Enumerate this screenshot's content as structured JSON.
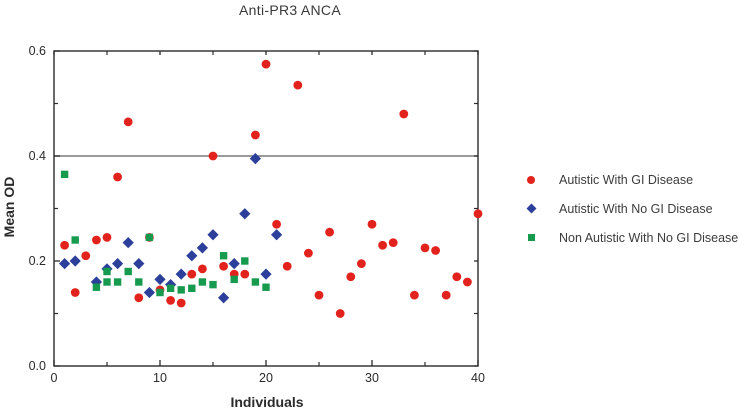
{
  "title": "Anti-PR3 ANCA",
  "chart_data": {
    "type": "scatter",
    "title": "Anti-PR3 ANCA",
    "xlabel": "Individuals",
    "ylabel": "Mean OD",
    "xlim": [
      0,
      40
    ],
    "ylim": [
      0,
      0.6
    ],
    "grid": false,
    "legend_position": "right-outside",
    "frame": "box-with-inward-ticks",
    "reference_line_y": 0.4,
    "reference_line_color": "#77787b",
    "frame_color": "#2b2b2b",
    "x_ticks": {
      "major": [
        0,
        10,
        20,
        30,
        40
      ],
      "minor": [
        5,
        15,
        25,
        35
      ],
      "labels": [
        "0",
        "10",
        "20",
        "30",
        "40"
      ]
    },
    "y_ticks": {
      "major": [
        0,
        0.2,
        0.4,
        0.6
      ],
      "minor": [
        0.1,
        0.3,
        0.5
      ],
      "labels": [
        "0.0",
        "0.2",
        "0.4",
        "0.6"
      ]
    },
    "series": [
      {
        "name": "Autistic With GI Disease",
        "marker": "circle",
        "color": "#e2231d",
        "points": [
          [
            1,
            0.23
          ],
          [
            2,
            0.14
          ],
          [
            3,
            0.21
          ],
          [
            4,
            0.24
          ],
          [
            5,
            0.245
          ],
          [
            6,
            0.36
          ],
          [
            7,
            0.465
          ],
          [
            8,
            0.13
          ],
          [
            9,
            0.245
          ],
          [
            10,
            0.145
          ],
          [
            11,
            0.125
          ],
          [
            12,
            0.12
          ],
          [
            13,
            0.175
          ],
          [
            14,
            0.185
          ],
          [
            15,
            0.4
          ],
          [
            16,
            0.19
          ],
          [
            17,
            0.175
          ],
          [
            18,
            0.175
          ],
          [
            19,
            0.44
          ],
          [
            20,
            0.575
          ],
          [
            21,
            0.27
          ],
          [
            22,
            0.19
          ],
          [
            23,
            0.535
          ],
          [
            24,
            0.215
          ],
          [
            25,
            0.135
          ],
          [
            26,
            0.255
          ],
          [
            27,
            0.1
          ],
          [
            28,
            0.17
          ],
          [
            29,
            0.195
          ],
          [
            30,
            0.27
          ],
          [
            31,
            0.23
          ],
          [
            32,
            0.235
          ],
          [
            33,
            0.48
          ],
          [
            34,
            0.135
          ],
          [
            35,
            0.225
          ],
          [
            36,
            0.22
          ],
          [
            37,
            0.135
          ],
          [
            38,
            0.17
          ],
          [
            39,
            0.16
          ],
          [
            40,
            0.29
          ]
        ]
      },
      {
        "name": "Autistic With No GI Disease",
        "marker": "diamond",
        "color": "#2b3f9b",
        "points": [
          [
            1,
            0.195
          ],
          [
            2,
            0.2
          ],
          [
            4,
            0.16
          ],
          [
            5,
            0.185
          ],
          [
            6,
            0.195
          ],
          [
            7,
            0.235
          ],
          [
            8,
            0.195
          ],
          [
            9,
            0.14
          ],
          [
            10,
            0.165
          ],
          [
            11,
            0.155
          ],
          [
            12,
            0.175
          ],
          [
            13,
            0.21
          ],
          [
            14,
            0.225
          ],
          [
            15,
            0.25
          ],
          [
            16,
            0.13
          ],
          [
            17,
            0.195
          ],
          [
            18,
            0.29
          ],
          [
            19,
            0.395
          ],
          [
            20,
            0.175
          ],
          [
            21,
            0.25
          ]
        ]
      },
      {
        "name": "Non Autistic With No GI Disease",
        "marker": "square",
        "color": "#169b4e",
        "points": [
          [
            1,
            0.365
          ],
          [
            2,
            0.24
          ],
          [
            4,
            0.15
          ],
          [
            5,
            0.18
          ],
          [
            5,
            0.16
          ],
          [
            6,
            0.16
          ],
          [
            7,
            0.18
          ],
          [
            8,
            0.16
          ],
          [
            9,
            0.245
          ],
          [
            10,
            0.14
          ],
          [
            11,
            0.148
          ],
          [
            12,
            0.145
          ],
          [
            13,
            0.148
          ],
          [
            14,
            0.16
          ],
          [
            15,
            0.155
          ],
          [
            16,
            0.21
          ],
          [
            17,
            0.165
          ],
          [
            18,
            0.2
          ],
          [
            19,
            0.16
          ],
          [
            20,
            0.15
          ]
        ]
      }
    ]
  }
}
